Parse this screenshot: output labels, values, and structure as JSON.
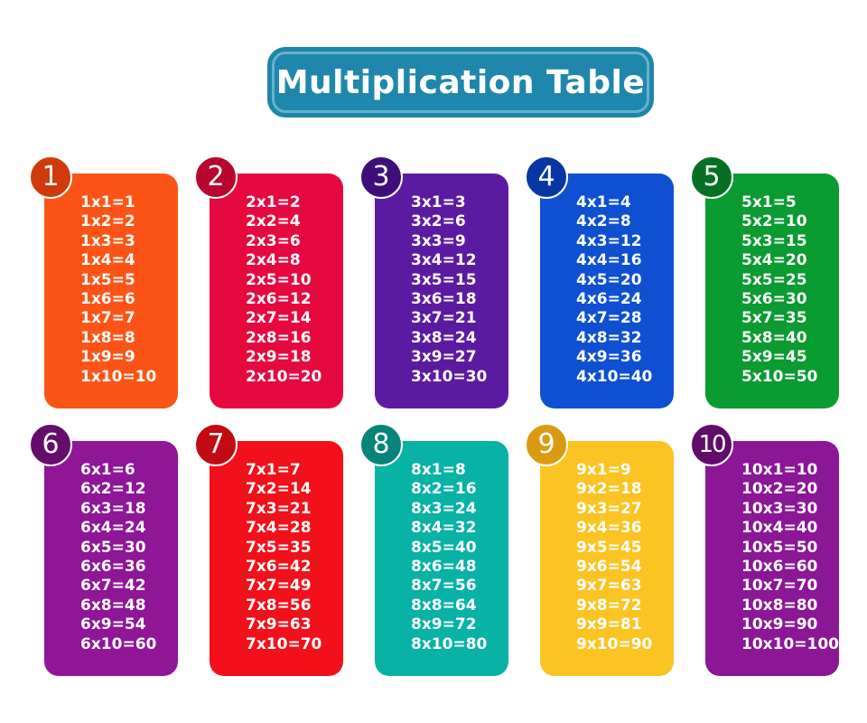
{
  "title": "Multiplication Table",
  "cards": [
    {
      "number": "1",
      "color": "#fc5416",
      "badge_color": "#cf3b0c",
      "rows": [
        "1x1=1",
        "1x2=2",
        "1x3=3",
        "1x4=4",
        "1x5=5",
        "1x6=6",
        "1x7=7",
        "1x8=8",
        "1x9=9",
        "1x10=10"
      ]
    },
    {
      "number": "2",
      "color": "#e5093f",
      "badge_color": "#b8062f",
      "rows": [
        "2x1=2",
        "2x2=4",
        "2x3=6",
        "2x4=8",
        "2x5=10",
        "2x6=12",
        "2x7=14",
        "2x8=16",
        "2x9=18",
        "2x10=20"
      ]
    },
    {
      "number": "3",
      "color": "#5a1ba1",
      "badge_color": "#3e0f78",
      "rows": [
        "3x1=3",
        "3x2=6",
        "3x3=9",
        "3x4=12",
        "3x5=15",
        "3x6=18",
        "3x7=21",
        "3x8=24",
        "3x9=27",
        "3x10=30"
      ]
    },
    {
      "number": "4",
      "color": "#0f4fd1",
      "badge_color": "#0836a3",
      "rows": [
        "4x1=4",
        "4x2=8",
        "4x3=12",
        "4x4=16",
        "4x5=20",
        "4x6=24",
        "4x7=28",
        "4x8=32",
        "4x9=36",
        "4x10=40"
      ]
    },
    {
      "number": "5",
      "color": "#0a9b31",
      "badge_color": "#067022",
      "rows": [
        "5x1=5",
        "5x2=10",
        "5x3=15",
        "5x4=20",
        "5x5=25",
        "5x6=30",
        "5x7=35",
        "5x8=40",
        "5x9=45",
        "5x10=50"
      ]
    },
    {
      "number": "6",
      "color": "#8e1697",
      "badge_color": "#650d6d",
      "rows": [
        "6x1=6",
        "6x2=12",
        "6x3=18",
        "6x4=24",
        "6x5=30",
        "6x6=36",
        "6x7=42",
        "6x8=48",
        "6x9=54",
        "6x10=60"
      ]
    },
    {
      "number": "7",
      "color": "#f2101a",
      "badge_color": "#c20a12",
      "rows": [
        "7x1=7",
        "7x2=14",
        "7x3=21",
        "7x4=28",
        "7x5=35",
        "7x6=42",
        "7x7=49",
        "7x8=56",
        "7x9=63",
        "7x10=70"
      ]
    },
    {
      "number": "8",
      "color": "#08b2a5",
      "badge_color": "#058479",
      "rows": [
        "8x1=8",
        "8x2=16",
        "8x3=24",
        "8x4=32",
        "8x5=40",
        "8x6=48",
        "8x7=56",
        "8x8=64",
        "8x9=72",
        "8x10=80"
      ]
    },
    {
      "number": "9",
      "color": "#fbc423",
      "badge_color": "#dc9a12",
      "rows": [
        "9x1=9",
        "9x2=18",
        "9x3=27",
        "9x4=36",
        "9x5=45",
        "9x6=54",
        "9x7=63",
        "9x8=72",
        "9x9=81",
        "9x10=90"
      ]
    },
    {
      "number": "10",
      "color": "#8b1696",
      "badge_color": "#600c68",
      "rows": [
        "10x1=10",
        "10x2=20",
        "10x3=30",
        "10x4=40",
        "10x5=50",
        "10x6=60",
        "10x7=70",
        "10x8=80",
        "10x9=90",
        "10x10=100"
      ]
    }
  ]
}
